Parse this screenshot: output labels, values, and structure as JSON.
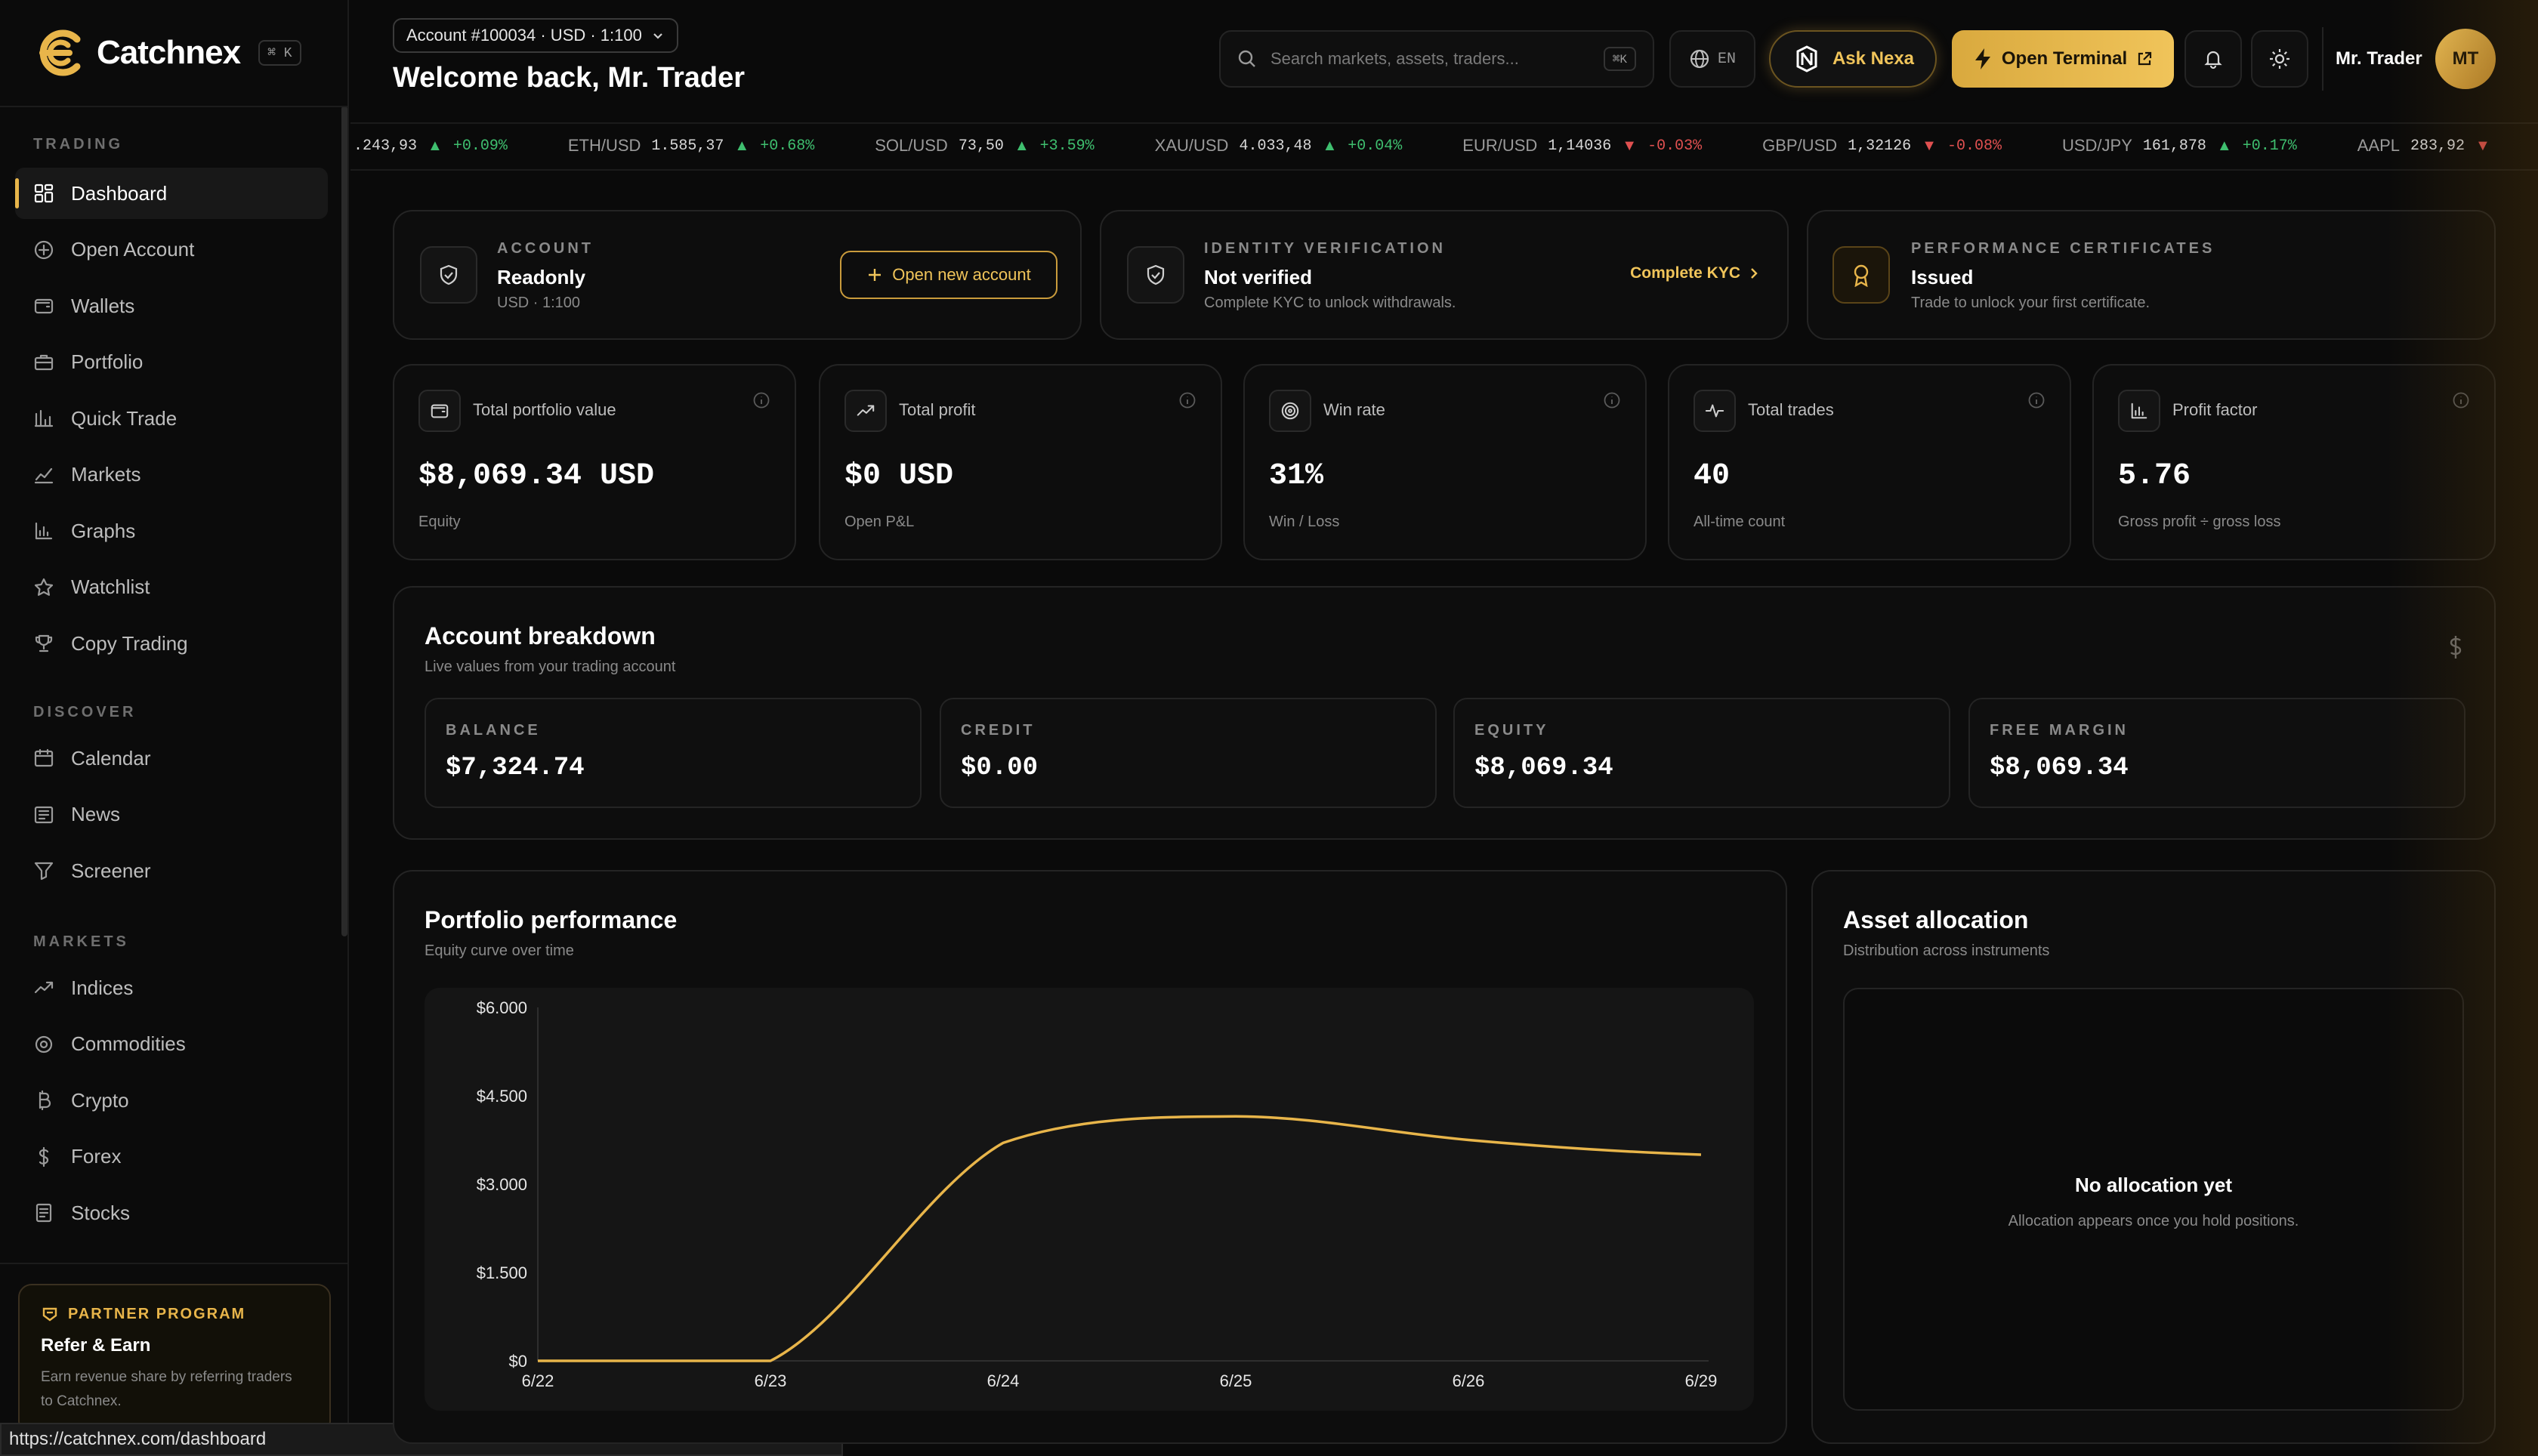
{
  "app": {
    "name": "Catchnex",
    "shortcut": "⌘ K",
    "status_url": "https://catchnex.com/dashboard"
  },
  "sidebar": {
    "sections": [
      {
        "title": "TRADING",
        "items": [
          {
            "label": "Dashboard",
            "icon": "dashboard-icon",
            "active": true
          },
          {
            "label": "Open Account",
            "icon": "plus-circle-icon"
          },
          {
            "label": "Wallets",
            "icon": "wallet-icon"
          },
          {
            "label": "Portfolio",
            "icon": "briefcase-icon"
          },
          {
            "label": "Quick Trade",
            "icon": "quick-trade-icon"
          },
          {
            "label": "Markets",
            "icon": "chart-line-icon"
          },
          {
            "label": "Graphs",
            "icon": "bar-chart-icon"
          },
          {
            "label": "Watchlist",
            "icon": "star-icon"
          },
          {
            "label": "Copy Trading",
            "icon": "trophy-icon"
          }
        ]
      },
      {
        "title": "DISCOVER",
        "items": [
          {
            "label": "Calendar",
            "icon": "calendar-icon"
          },
          {
            "label": "News",
            "icon": "newspaper-icon"
          },
          {
            "label": "Screener",
            "icon": "filter-icon"
          }
        ]
      },
      {
        "title": "MARKETS",
        "items": [
          {
            "label": "Indices",
            "icon": "trend-icon"
          },
          {
            "label": "Commodities",
            "icon": "gem-icon"
          },
          {
            "label": "Crypto",
            "icon": "bitcoin-icon"
          },
          {
            "label": "Forex",
            "icon": "dollar-icon"
          },
          {
            "label": "Stocks",
            "icon": "document-icon"
          }
        ]
      }
    ],
    "partner": {
      "tag": "PARTNER PROGRAM",
      "title": "Refer & Earn",
      "desc_line1": "Earn revenue share by referring traders",
      "desc_line2": "to Catchnex."
    }
  },
  "header": {
    "account_selector": "Account #100034 · USD · 1:100",
    "welcome": "Welcome back, Mr. Trader",
    "search_placeholder": "Search markets, assets, traders...",
    "search_shortcut": "⌘K",
    "language": "EN",
    "ask_nexa": "Ask Nexa",
    "open_terminal": "Open Terminal",
    "user_name": "Mr. Trader",
    "avatar_initials": "MT"
  },
  "ticker": [
    {
      "symbol": "",
      "price": ".243,93",
      "change": "+0.09%",
      "dir": "up"
    },
    {
      "symbol": "ETH/USD",
      "price": "1.585,37",
      "change": "+0.68%",
      "dir": "up"
    },
    {
      "symbol": "SOL/USD",
      "price": "73,50",
      "change": "+3.59%",
      "dir": "up"
    },
    {
      "symbol": "XAU/USD",
      "price": "4.033,48",
      "change": "+0.04%",
      "dir": "up"
    },
    {
      "symbol": "EUR/USD",
      "price": "1,14036",
      "change": "-0.03%",
      "dir": "down"
    },
    {
      "symbol": "GBP/USD",
      "price": "1,32126",
      "change": "-0.08%",
      "dir": "down"
    },
    {
      "symbol": "USD/JPY",
      "price": "161,878",
      "change": "+0.17%",
      "dir": "up"
    },
    {
      "symbol": "AAPL",
      "price": "283,92",
      "change": "",
      "dir": "down"
    }
  ],
  "top_cards": {
    "account": {
      "eyebrow": "ACCOUNT",
      "title": "Readonly",
      "sub": "USD · 1:100",
      "button": "Open new account"
    },
    "identity": {
      "eyebrow": "IDENTITY VERIFICATION",
      "title": "Not verified",
      "sub": "Complete KYC to unlock withdrawals.",
      "link": "Complete KYC"
    },
    "certs": {
      "eyebrow": "PERFORMANCE CERTIFICATES",
      "title": "Issued",
      "sub": "Trade to unlock your first certificate."
    }
  },
  "stats": [
    {
      "label": "Total portfolio value",
      "value": "$8,069.34 USD",
      "sub": "Equity",
      "icon": "wallet-icon"
    },
    {
      "label": "Total profit",
      "value": "$0 USD",
      "sub": "Open P&L",
      "icon": "trend-up-icon"
    },
    {
      "label": "Win rate",
      "value": "31%",
      "sub": "Win / Loss",
      "icon": "target-icon"
    },
    {
      "label": "Total trades",
      "value": "40",
      "sub": "All-time count",
      "icon": "activity-icon"
    },
    {
      "label": "Profit factor",
      "value": "5.76",
      "sub": "Gross profit ÷ gross loss",
      "icon": "bar-chart-icon"
    }
  ],
  "breakdown": {
    "title": "Account breakdown",
    "sub": "Live values from your trading account",
    "items": [
      {
        "label": "BALANCE",
        "value": "$7,324.74"
      },
      {
        "label": "CREDIT",
        "value": "$0.00"
      },
      {
        "label": "EQUITY",
        "value": "$8,069.34"
      },
      {
        "label": "FREE MARGIN",
        "value": "$8,069.34"
      }
    ]
  },
  "performance": {
    "title": "Portfolio performance",
    "sub": "Equity curve over time"
  },
  "allocation": {
    "title": "Asset allocation",
    "sub": "Distribution across instruments",
    "empty_title": "No allocation yet",
    "empty_sub": "Allocation appears once you hold positions."
  },
  "chart_data": {
    "type": "line",
    "x": [
      "6/22",
      "6/23",
      "6/24",
      "6/25",
      "6/26",
      "6/29"
    ],
    "series": [
      {
        "values": [
          0,
          0,
          3700,
          4150,
          3750,
          3500
        ]
      }
    ],
    "y_ticks": [
      "$0",
      "$1.500",
      "$3.000",
      "$4.500",
      "$6.000"
    ],
    "ylim": [
      0,
      6000
    ],
    "grid": false,
    "color": "#e8b54a"
  },
  "colors": {
    "accent": "#e8b54a",
    "up": "#3fbf6f",
    "down": "#e05050"
  }
}
